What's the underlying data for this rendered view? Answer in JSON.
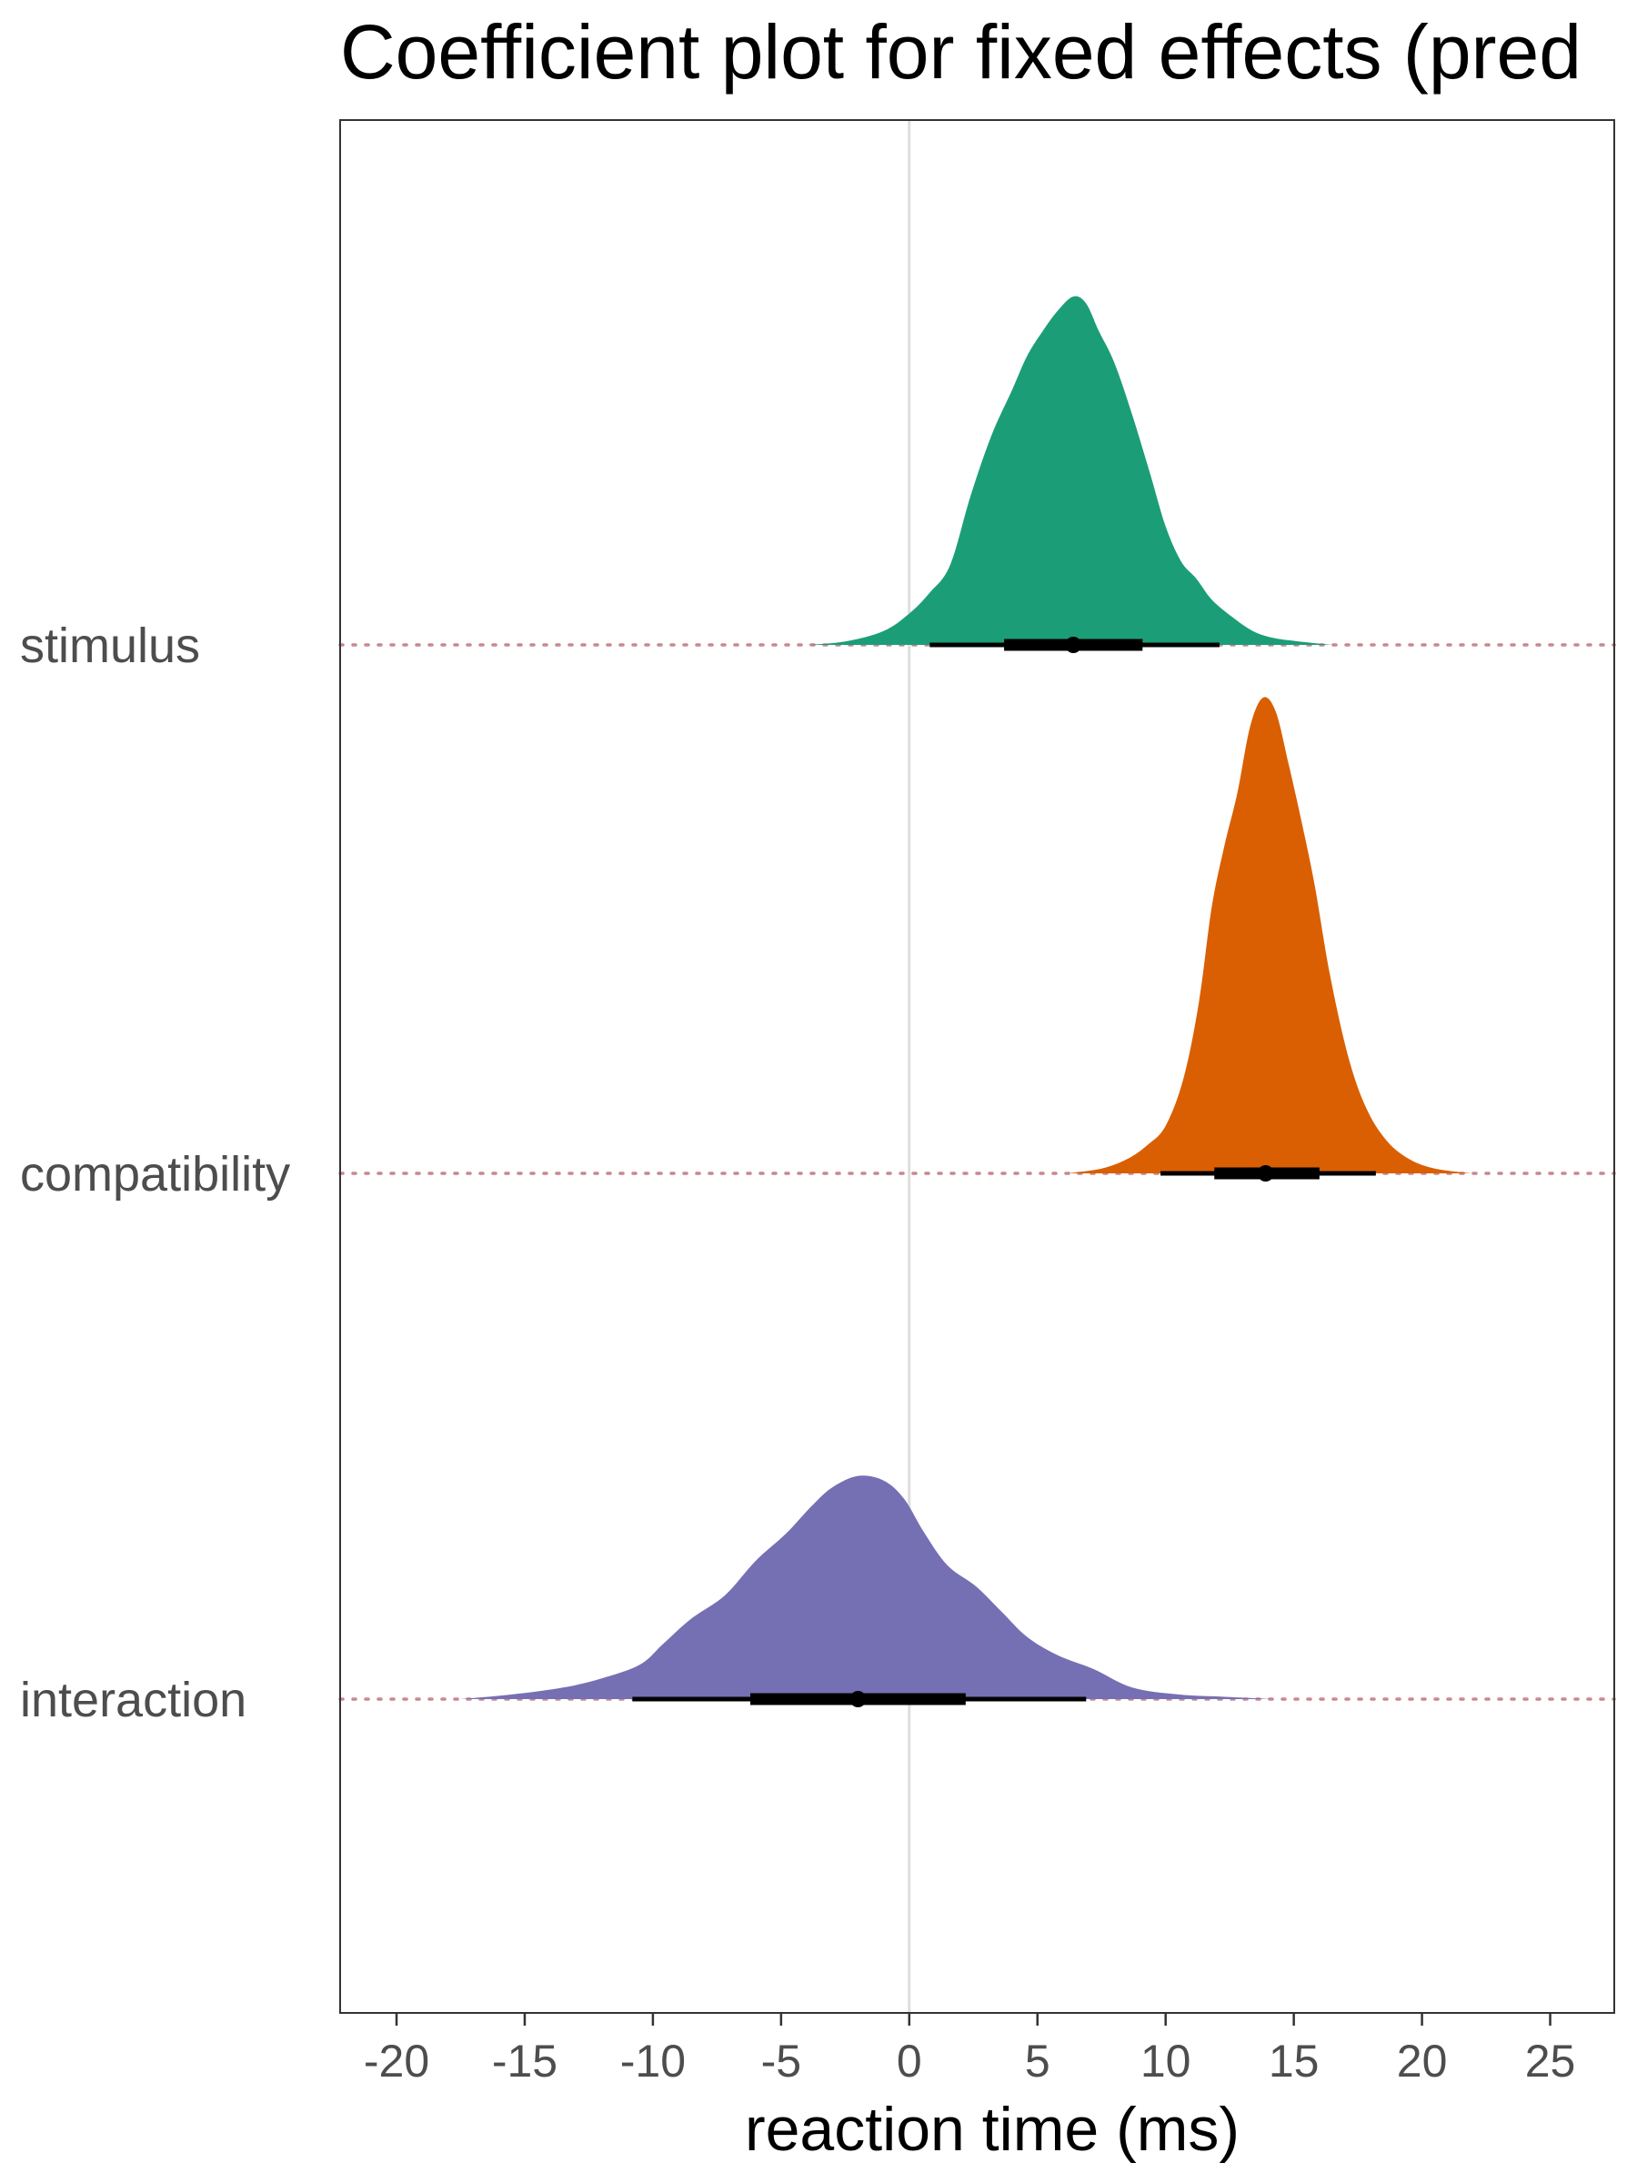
{
  "chart_data": {
    "type": "area",
    "title": "Coefficient plot for fixed effects (pred",
    "xlabel": "reaction time (ms)",
    "ylabel": "",
    "xlim": [
      -22.2,
      27.5
    ],
    "x_ticks": [
      -20,
      -15,
      -10,
      -5,
      0,
      5,
      10,
      15,
      20,
      25
    ],
    "x_tick_labels": [
      "-20",
      "-15",
      "-10",
      "-5",
      "0",
      "5",
      "10",
      "15",
      "20",
      "25"
    ],
    "reference_line": 0,
    "grid": false,
    "legend": "none",
    "categories": [
      "stimulus",
      "compatibility",
      "interaction"
    ],
    "series": [
      {
        "name": "stimulus",
        "color": "#1b9e77",
        "point_estimate": 6.4,
        "interval_inner": [
          3.7,
          9.1
        ],
        "interval_outer": [
          0.8,
          12.1
        ],
        "density": {
          "x": [
            -4.0,
            -2.5,
            -1.0,
            0.0,
            0.8,
            1.6,
            2.4,
            3.2,
            4.0,
            4.6,
            5.2,
            5.8,
            6.4,
            6.9,
            7.4,
            8.0,
            8.7,
            9.4,
            10.0,
            10.6,
            11.2,
            11.8,
            12.6,
            13.4,
            14.2,
            15.2,
            16.5
          ],
          "y": [
            0.0,
            0.01,
            0.04,
            0.09,
            0.15,
            0.23,
            0.43,
            0.6,
            0.73,
            0.83,
            0.9,
            0.96,
            1.0,
            0.98,
            0.9,
            0.81,
            0.66,
            0.49,
            0.34,
            0.24,
            0.19,
            0.13,
            0.08,
            0.04,
            0.02,
            0.01,
            0.0
          ]
        }
      },
      {
        "name": "compatibility",
        "color": "#d95f02",
        "point_estimate": 13.9,
        "interval_inner": [
          11.9,
          16.0
        ],
        "interval_outer": [
          9.8,
          18.2
        ],
        "density": {
          "x": [
            6.2,
            7.5,
            8.5,
            9.3,
            10.0,
            10.7,
            11.3,
            11.8,
            12.3,
            12.8,
            13.3,
            13.8,
            14.3,
            14.8,
            15.3,
            15.8,
            16.4,
            17.1,
            17.8,
            18.6,
            19.5,
            20.5,
            21.9
          ],
          "y": [
            0.0,
            0.01,
            0.03,
            0.06,
            0.1,
            0.2,
            0.36,
            0.56,
            0.69,
            0.8,
            0.94,
            1.0,
            0.97,
            0.86,
            0.74,
            0.61,
            0.42,
            0.25,
            0.14,
            0.07,
            0.03,
            0.01,
            0.0
          ]
        }
      },
      {
        "name": "interaction",
        "color": "#7570b3",
        "point_estimate": -2.0,
        "interval_inner": [
          -6.2,
          2.2
        ],
        "interval_outer": [
          -10.8,
          6.9
        ],
        "density": {
          "x": [
            -17.5,
            -15.5,
            -13.5,
            -12.0,
            -10.5,
            -9.6,
            -8.5,
            -7.2,
            -6.0,
            -4.8,
            -3.8,
            -3.0,
            -2.0,
            -1.0,
            -0.2,
            0.6,
            1.5,
            2.6,
            3.6,
            4.6,
            5.8,
            7.2,
            8.7,
            10.5,
            12.3,
            14.2
          ],
          "y": [
            0.0,
            0.02,
            0.05,
            0.09,
            0.15,
            0.24,
            0.35,
            0.45,
            0.6,
            0.72,
            0.84,
            0.92,
            0.97,
            0.95,
            0.87,
            0.72,
            0.58,
            0.49,
            0.38,
            0.27,
            0.19,
            0.13,
            0.05,
            0.02,
            0.01,
            0.0
          ]
        }
      }
    ]
  }
}
